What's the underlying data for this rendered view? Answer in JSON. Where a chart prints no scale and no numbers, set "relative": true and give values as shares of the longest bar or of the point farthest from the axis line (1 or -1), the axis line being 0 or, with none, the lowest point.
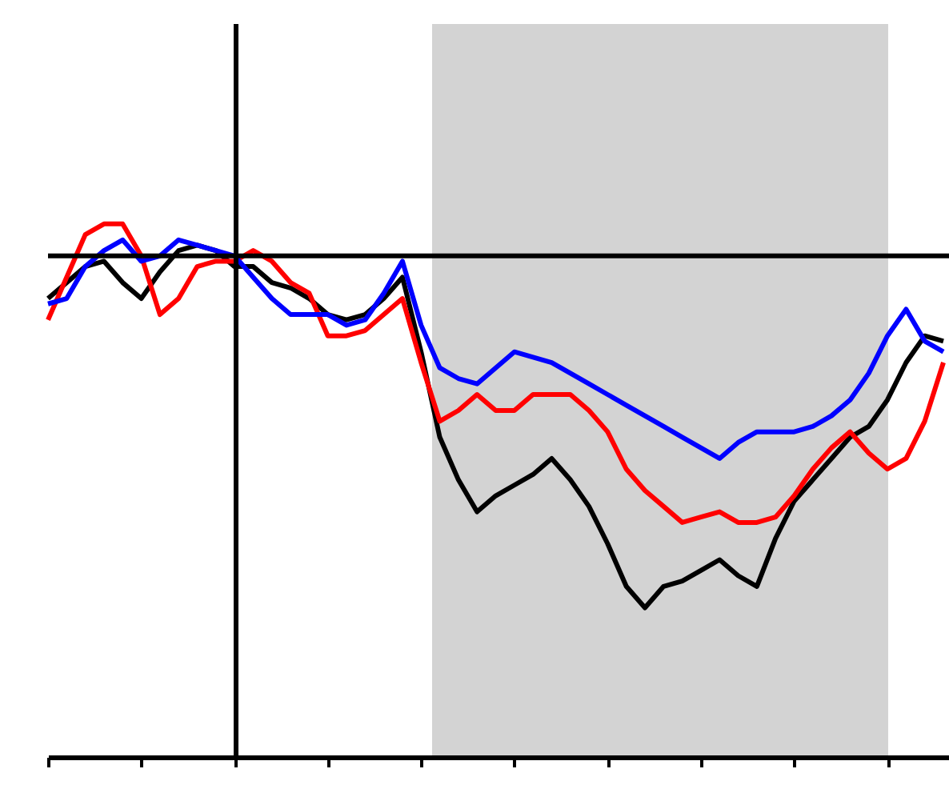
{
  "chart_data": {
    "type": "line",
    "relative": true,
    "categories": [
      null,
      null,
      null,
      null,
      null,
      null,
      null,
      null,
      null,
      null,
      null,
      null,
      null,
      null,
      null,
      null,
      null,
      null,
      null,
      null,
      null,
      null,
      null,
      null,
      null,
      null,
      null,
      null,
      null,
      null,
      null,
      null,
      null,
      null,
      null,
      null,
      null,
      null,
      null,
      null,
      null,
      null,
      null,
      null,
      null,
      null,
      null,
      null,
      null
    ],
    "series": [
      {
        "color": "#000000",
        "values": [
          0.86,
          0.89,
          0.92,
          0.93,
          0.89,
          0.86,
          0.91,
          0.95,
          0.96,
          0.95,
          0.92,
          0.92,
          0.89,
          0.88,
          0.86,
          0.83,
          0.82,
          0.83,
          0.86,
          0.9,
          0.76,
          0.6,
          0.52,
          0.46,
          0.49,
          0.51,
          0.53,
          0.56,
          0.52,
          0.47,
          0.4,
          0.32,
          0.28,
          0.32,
          0.33,
          0.35,
          0.37,
          0.34,
          0.32,
          0.41,
          0.48,
          0.52,
          0.56,
          0.6,
          0.62,
          0.67,
          0.74,
          0.79,
          0.78
        ]
      },
      {
        "color": "#ff0000",
        "values": [
          0.82,
          0.9,
          0.98,
          1,
          1,
          0.94,
          0.83,
          0.86,
          0.92,
          0.93,
          0.93,
          0.95,
          0.93,
          0.89,
          0.87,
          0.79,
          0.79,
          0.8,
          0.83,
          0.86,
          0.74,
          0.63,
          0.65,
          0.68,
          0.65,
          0.65,
          0.68,
          0.68,
          0.68,
          0.65,
          0.61,
          0.54,
          0.5,
          0.47,
          0.44,
          0.45,
          0.46,
          0.44,
          0.44,
          0.45,
          0.49,
          0.54,
          0.58,
          0.61,
          0.57,
          0.54,
          0.56,
          0.63,
          0.74
        ]
      },
      {
        "color": "#0000ff",
        "values": [
          0.85,
          0.86,
          0.92,
          0.95,
          0.97,
          0.93,
          0.94,
          0.97,
          0.96,
          0.95,
          0.94,
          0.9,
          0.86,
          0.83,
          0.83,
          0.83,
          0.81,
          0.82,
          0.87,
          0.93,
          0.81,
          0.73,
          0.71,
          0.7,
          0.73,
          0.76,
          0.75,
          0.74,
          0.72,
          0.7,
          0.68,
          0.66,
          0.64,
          0.62,
          0.6,
          0.58,
          0.56,
          0.59,
          0.61,
          0.61,
          0.61,
          0.62,
          0.64,
          0.67,
          0.72,
          0.79,
          0.84,
          0.78,
          0.76
        ]
      }
    ],
    "ref_lines": [
      {
        "axis": "y",
        "value": 0.94,
        "color": "#000000"
      }
    ]
  }
}
